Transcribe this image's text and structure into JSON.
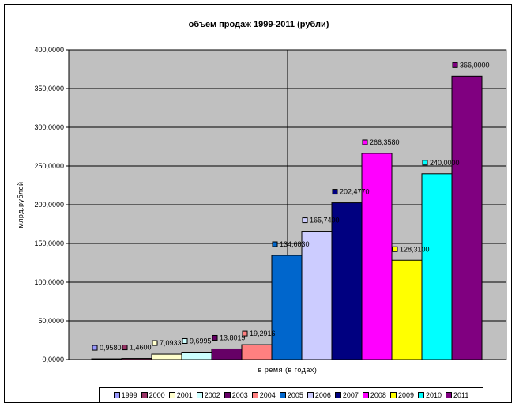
{
  "chart_data": {
    "type": "bar",
    "title": "объем продаж 1999-2011 (рубли)",
    "xlabel": "в ремя  (в  годах)",
    "ylabel": "млрд.рублей",
    "ylim": [
      0,
      400000
    ],
    "y_ticks": [
      "0,0000",
      "50,0000",
      "100,0000",
      "150,0000",
      "200,0000",
      "250,0000",
      "300,0000",
      "350,0000",
      "400,0000"
    ],
    "grid": true,
    "legend": "bottom",
    "series": [
      {
        "name": "1999",
        "value": 0.958,
        "label": "0,9580",
        "color": "#9999ff"
      },
      {
        "name": "2000",
        "value": 1.46,
        "label": "1,4600",
        "color": "#993366"
      },
      {
        "name": "2001",
        "value": 7.0933,
        "label": "7,0933",
        "color": "#ffffcc"
      },
      {
        "name": "2002",
        "value": 9.6995,
        "label": "9,6995",
        "color": "#ccffff"
      },
      {
        "name": "2003",
        "value": 13.8019,
        "label": "13,8019",
        "color": "#660066"
      },
      {
        "name": "2004",
        "value": 19.2916,
        "label": "19,2916",
        "color": "#ff8080"
      },
      {
        "name": "2005",
        "value": 134.683,
        "label": "134,6830",
        "color": "#0066cc"
      },
      {
        "name": "2006",
        "value": 165.74,
        "label": "165,7400",
        "color": "#ccccff"
      },
      {
        "name": "2007",
        "value": 202.477,
        "label": "202,4770",
        "color": "#000080"
      },
      {
        "name": "2008",
        "value": 266.358,
        "label": "266,3580",
        "color": "#ff00ff"
      },
      {
        "name": "2009",
        "value": 128.31,
        "label": "128,3100",
        "color": "#ffff00"
      },
      {
        "name": "2010",
        "value": 240.0,
        "label": "240,0000",
        "color": "#00ffff"
      },
      {
        "name": "2011",
        "value": 366.0,
        "label": "366,0000",
        "color": "#800080"
      }
    ]
  }
}
